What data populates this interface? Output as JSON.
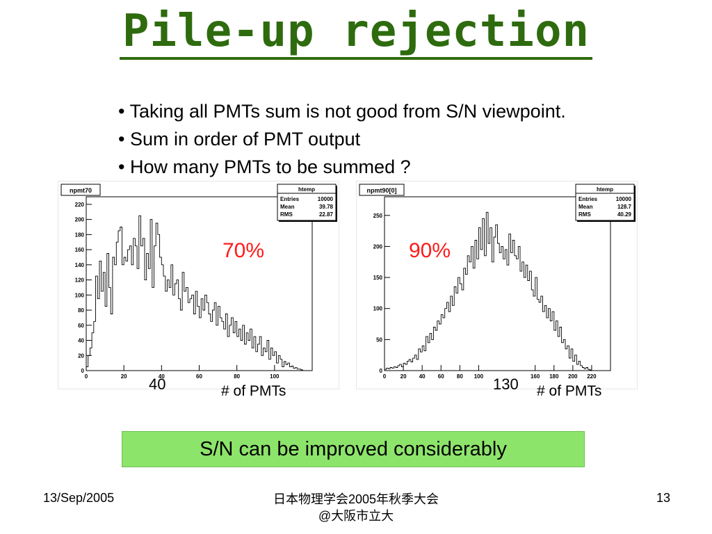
{
  "slide": {
    "title": "Pile-up rejection",
    "bullets": [
      "• Taking all PMTs sum is not good from S/N viewpoint.",
      "• Sum in order of PMT output",
      "• How many PMTs to be summed ?"
    ],
    "conclusion": "S/N can be improved considerably",
    "footer": {
      "date": "13/Sep/2005",
      "meeting_line1": "日本物理学会2005年秋季大会",
      "meeting_line2": "@大阪市立大",
      "page": "13"
    },
    "colors": {
      "title": "#2e6b0e",
      "percent": "#ff1a1a",
      "conclusion_bg": "#8de46b"
    }
  },
  "chart_data": [
    {
      "type": "bar",
      "hist_name": "npmt70",
      "stats": {
        "title": "htemp",
        "rows": [
          [
            "Entries",
            "10000"
          ],
          [
            "Mean",
            "39.78"
          ],
          [
            "RMS",
            "22.87"
          ]
        ]
      },
      "percent_label": "70%",
      "cut_label": "40",
      "xlabel": "# of PMTs",
      "ylabel": "",
      "xlim": [
        0,
        120
      ],
      "ylim": [
        0,
        230
      ],
      "xticks": [
        0,
        20,
        40,
        60,
        80,
        100
      ],
      "yticks": [
        0,
        20,
        40,
        60,
        80,
        100,
        120,
        140,
        160,
        180,
        200,
        220
      ],
      "bin_width": 1,
      "x": [
        0,
        1,
        2,
        3,
        4,
        5,
        6,
        7,
        8,
        9,
        10,
        11,
        12,
        13,
        14,
        15,
        16,
        17,
        18,
        19,
        20,
        21,
        22,
        23,
        24,
        25,
        26,
        27,
        28,
        29,
        30,
        31,
        32,
        33,
        34,
        35,
        36,
        37,
        38,
        39,
        40,
        41,
        42,
        43,
        44,
        45,
        46,
        47,
        48,
        49,
        50,
        51,
        52,
        53,
        54,
        55,
        56,
        57,
        58,
        59,
        60,
        61,
        62,
        63,
        64,
        65,
        66,
        67,
        68,
        69,
        70,
        71,
        72,
        73,
        74,
        75,
        76,
        77,
        78,
        79,
        80,
        81,
        82,
        83,
        84,
        85,
        86,
        87,
        88,
        89,
        90,
        91,
        92,
        93,
        94,
        95,
        96,
        97,
        98,
        99,
        100,
        101,
        102,
        103,
        104,
        105,
        106,
        107,
        108,
        109,
        110,
        111,
        112,
        113,
        114,
        115,
        116,
        117,
        118,
        119
      ],
      "values": [
        5,
        20,
        30,
        50,
        65,
        125,
        95,
        145,
        105,
        130,
        85,
        155,
        110,
        75,
        150,
        140,
        170,
        185,
        190,
        140,
        150,
        145,
        160,
        165,
        140,
        175,
        165,
        135,
        205,
        165,
        175,
        120,
        155,
        135,
        200,
        110,
        165,
        195,
        180,
        150,
        140,
        125,
        105,
        120,
        110,
        140,
        100,
        115,
        120,
        95,
        80,
        130,
        105,
        110,
        90,
        95,
        100,
        75,
        105,
        85,
        70,
        95,
        80,
        100,
        90,
        75,
        65,
        80,
        90,
        60,
        85,
        70,
        65,
        55,
        75,
        45,
        60,
        70,
        50,
        65,
        45,
        55,
        40,
        60,
        35,
        50,
        40,
        55,
        30,
        45,
        25,
        35,
        45,
        20,
        30,
        25,
        40,
        15,
        30,
        20,
        25,
        10,
        20,
        15,
        5,
        12,
        8,
        10,
        5,
        6,
        3,
        4,
        2,
        2,
        1,
        0,
        0,
        0,
        0,
        0
      ]
    },
    {
      "type": "bar",
      "hist_name": "npmt90[0]",
      "stats": {
        "title": "htemp",
        "rows": [
          [
            "Entries",
            "10000"
          ],
          [
            "Mean",
            "128.7"
          ],
          [
            "RMS",
            "40.29"
          ]
        ]
      },
      "percent_label": "90%",
      "cut_label": "130",
      "xlabel": "# of PMTs",
      "ylabel": "",
      "xlim": [
        0,
        240
      ],
      "ylim": [
        0,
        280
      ],
      "xticks": [
        0,
        20,
        40,
        60,
        80,
        100,
        160,
        180,
        200,
        220
      ],
      "yticks": [
        0,
        50,
        100,
        150,
        200,
        250
      ],
      "bin_width": 2,
      "x": [
        0,
        2,
        4,
        6,
        8,
        10,
        12,
        14,
        16,
        18,
        20,
        22,
        24,
        26,
        28,
        30,
        32,
        34,
        36,
        38,
        40,
        42,
        44,
        46,
        48,
        50,
        52,
        54,
        56,
        58,
        60,
        62,
        64,
        66,
        68,
        70,
        72,
        74,
        76,
        78,
        80,
        82,
        84,
        86,
        88,
        90,
        92,
        94,
        96,
        98,
        100,
        102,
        104,
        106,
        108,
        110,
        112,
        114,
        116,
        118,
        120,
        122,
        124,
        126,
        128,
        130,
        132,
        134,
        136,
        138,
        140,
        142,
        144,
        146,
        148,
        150,
        152,
        154,
        156,
        158,
        160,
        162,
        164,
        166,
        168,
        170,
        172,
        174,
        176,
        178,
        180,
        182,
        184,
        186,
        188,
        190,
        192,
        194,
        196,
        198,
        200,
        202,
        204,
        206,
        208,
        210,
        212,
        214,
        216,
        218,
        220,
        222,
        224,
        226,
        228,
        230,
        232,
        234,
        236,
        238
      ],
      "values": [
        2,
        4,
        3,
        5,
        4,
        6,
        5,
        8,
        10,
        6,
        12,
        10,
        15,
        18,
        14,
        20,
        25,
        18,
        35,
        30,
        40,
        32,
        55,
        45,
        60,
        50,
        70,
        65,
        80,
        75,
        90,
        85,
        100,
        110,
        95,
        120,
        105,
        135,
        125,
        150,
        140,
        130,
        165,
        155,
        185,
        175,
        200,
        165,
        210,
        180,
        230,
        195,
        245,
        185,
        255,
        205,
        230,
        175,
        215,
        235,
        205,
        190,
        200,
        180,
        195,
        170,
        220,
        190,
        210,
        185,
        180,
        200,
        160,
        175,
        150,
        170,
        145,
        160,
        130,
        120,
        150,
        115,
        110,
        120,
        95,
        105,
        85,
        100,
        80,
        95,
        65,
        80,
        55,
        70,
        45,
        50,
        35,
        40,
        20,
        35,
        15,
        25,
        10,
        15,
        8,
        5,
        3,
        5,
        2,
        1,
        0,
        0,
        0,
        0,
        0,
        0,
        0,
        0,
        0,
        0
      ]
    }
  ]
}
